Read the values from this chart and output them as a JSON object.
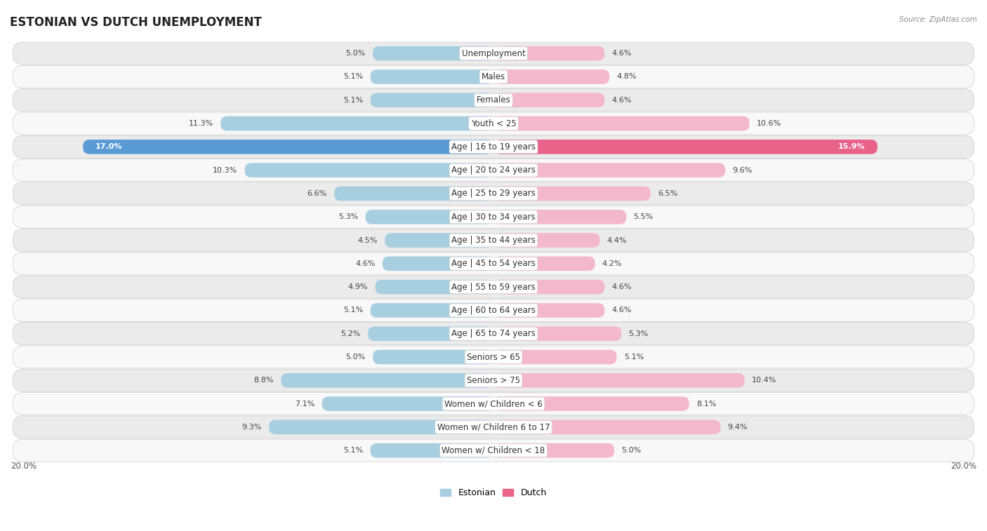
{
  "title": "ESTONIAN VS DUTCH UNEMPLOYMENT",
  "source": "Source: ZipAtlas.com",
  "categories": [
    "Unemployment",
    "Males",
    "Females",
    "Youth < 25",
    "Age | 16 to 19 years",
    "Age | 20 to 24 years",
    "Age | 25 to 29 years",
    "Age | 30 to 34 years",
    "Age | 35 to 44 years",
    "Age | 45 to 54 years",
    "Age | 55 to 59 years",
    "Age | 60 to 64 years",
    "Age | 65 to 74 years",
    "Seniors > 65",
    "Seniors > 75",
    "Women w/ Children < 6",
    "Women w/ Children 6 to 17",
    "Women w/ Children < 18"
  ],
  "estonian": [
    5.0,
    5.1,
    5.1,
    11.3,
    17.0,
    10.3,
    6.6,
    5.3,
    4.5,
    4.6,
    4.9,
    5.1,
    5.2,
    5.0,
    8.8,
    7.1,
    9.3,
    5.1
  ],
  "dutch": [
    4.6,
    4.8,
    4.6,
    10.6,
    15.9,
    9.6,
    6.5,
    5.5,
    4.4,
    4.2,
    4.6,
    4.6,
    5.3,
    5.1,
    10.4,
    8.1,
    9.4,
    5.0
  ],
  "estonian_color_normal": "#a8cfe0",
  "estonian_color_highlight": "#5b9bd5",
  "dutch_color_normal": "#f4b8cc",
  "dutch_color_highlight": "#e8628a",
  "row_bg_light": "#ebebeb",
  "row_bg_white": "#f8f8f8",
  "row_border": "#dddddd",
  "axis_limit": 20.0,
  "bar_height": 0.62,
  "title_fontsize": 12,
  "label_fontsize": 8.5,
  "value_fontsize": 8.0,
  "source_fontsize": 7.5,
  "highlight_indices": [
    4
  ]
}
